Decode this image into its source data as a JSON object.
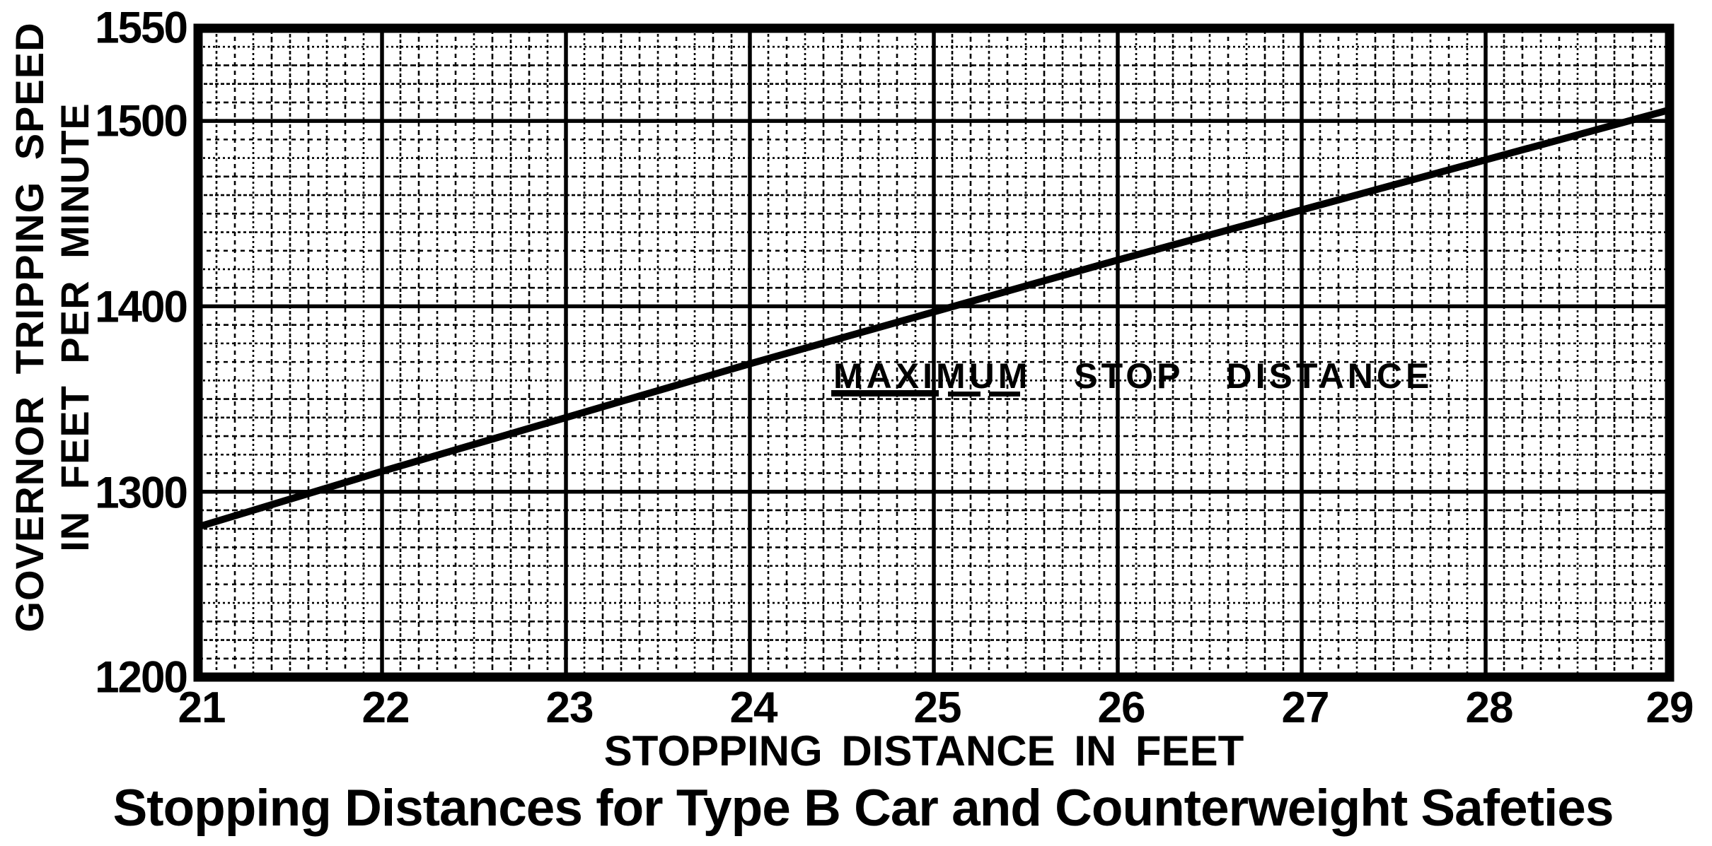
{
  "page": {
    "background": "#ffffff",
    "ink": "#000000",
    "style": "scanned bilevel engineering graph"
  },
  "chart": {
    "title": "Stopping Distances for Type B Car and Counterweight Safeties",
    "x_axis": {
      "label": "STOPPING DISTANCE IN FEET",
      "ticks": [
        "21",
        "22",
        "23",
        "24",
        "25",
        "26",
        "27",
        "28",
        "29"
      ]
    },
    "y_axis": {
      "label_line1": "GOVERNOR TRIPPING SPEED",
      "label_line2": "IN FEET PER MINUTE",
      "ticks": [
        "1550",
        "1500",
        "1400",
        "1300",
        "1200"
      ]
    },
    "annotation": {
      "text": "MAXIMUM STOP DISTANCE",
      "underlined_word": "MAXIMUM"
    }
  },
  "chart_data": {
    "type": "line",
    "title": "Stopping Distances for Type B Car and Counterweight Safeties",
    "xlabel": "STOPPING DISTANCE IN FEET",
    "ylabel": "GOVERNOR TRIPPING SPEED IN FEET PER MINUTE",
    "xlim": [
      21,
      29
    ],
    "ylim": [
      1200,
      1550
    ],
    "x_ticks": [
      21,
      22,
      23,
      24,
      25,
      26,
      27,
      28,
      29
    ],
    "y_ticks": [
      1200,
      1300,
      1400,
      1500,
      1550
    ],
    "grid": "fine engineering grid, 10 minor divisions per labeled unit (0.1 ft horizontal, 10 fpm vertical), heavy major lines",
    "legend": "none",
    "annotation": "MAXIMUM STOP DISTANCE",
    "series": [
      {
        "name": "MAXIMUM STOP DISTANCE",
        "x": [
          21,
          22,
          23,
          24,
          25,
          26,
          27,
          28,
          29
        ],
        "y": [
          1281,
          1311,
          1340,
          1369,
          1397,
          1425,
          1452,
          1479,
          1506
        ]
      }
    ]
  }
}
